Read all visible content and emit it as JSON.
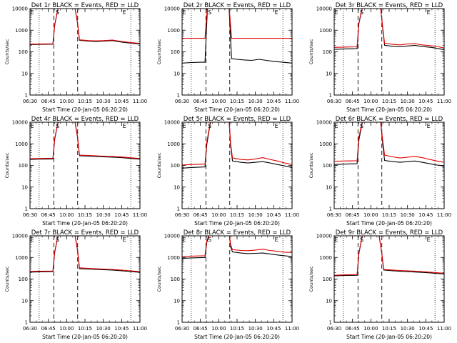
{
  "figure": {
    "background": "#ffffff",
    "axis_color": "#000000"
  },
  "chart_data": [
    {
      "type": "line",
      "title": "Det 1r BLACK = Events, RED = LLD",
      "xlabel": "Start Time (20-Jan-05 06:20:20)",
      "ylabel": "Counts/sec",
      "xticks": [
        "06:30",
        "06:45",
        "10:00",
        "10:15",
        "10:30",
        "10:45",
        "11:00"
      ],
      "yscale": "log",
      "ylim": [
        1,
        10000
      ],
      "yticks": [
        "1",
        "10",
        "100",
        "1000",
        "10000"
      ],
      "vlines_dotted": [
        0.5,
        5.5
      ],
      "vlines_dashed": [
        1.3,
        2.6
      ],
      "markers": [
        {
          "label": "E",
          "x": 0.12
        },
        {
          "label": "S",
          "x": 1.5
        },
        {
          "label": "E",
          "x": 5.15
        }
      ],
      "series": [
        {
          "name": "Events",
          "color": "#000000",
          "x": [
            0,
            0.5,
            1.25,
            1.35,
            1.6,
            2.4,
            2.6,
            2.7,
            3.2,
            3.6,
            4.0,
            4.5,
            5.0,
            5.5,
            6.0
          ],
          "y": [
            215,
            220,
            225,
            1800,
            20000,
            20000,
            2000,
            340,
            310,
            300,
            310,
            330,
            280,
            250,
            230
          ]
        },
        {
          "name": "LLD",
          "color": "#e00000",
          "x": [
            0,
            0.5,
            1.25,
            1.35,
            1.6,
            2.4,
            2.6,
            2.7,
            3.2,
            3.6,
            4.0,
            4.5,
            5.0,
            5.5,
            6.0
          ],
          "y": [
            225,
            230,
            235,
            1900,
            20000,
            20000,
            2100,
            360,
            330,
            320,
            330,
            350,
            300,
            270,
            245
          ]
        }
      ]
    },
    {
      "type": "line",
      "title": "Det 2r BLACK = Events, RED = LLD",
      "xlabel": "Start Time (20-Jan-05 06:20:20)",
      "ylabel": "Counts/sec",
      "xticks": [
        "06:30",
        "06:45",
        "10:00",
        "10:15",
        "10:30",
        "10:45",
        "11:00"
      ],
      "yscale": "log",
      "ylim": [
        1,
        10000
      ],
      "yticks": [
        "1",
        "10",
        "100",
        "1000",
        "10000"
      ],
      "vlines_dotted": [
        0.5,
        5.5
      ],
      "vlines_dashed": [
        1.3,
        2.6
      ],
      "markers": [
        {
          "label": "E",
          "x": 0.12
        },
        {
          "label": "S",
          "x": 1.5
        },
        {
          "label": "E",
          "x": 5.15
        }
      ],
      "series": [
        {
          "name": "Events",
          "color": "#000000",
          "x": [
            0,
            0.5,
            1.0,
            1.25,
            1.4,
            2.55,
            2.7,
            3.0,
            3.4,
            3.8,
            4.2,
            4.6,
            5.0,
            5.5,
            6.0
          ],
          "y": [
            30,
            32,
            33,
            33,
            20000,
            20000,
            48,
            45,
            42,
            40,
            45,
            40,
            36,
            33,
            30
          ]
        },
        {
          "name": "LLD",
          "color": "#e00000",
          "x": [
            0,
            0.5,
            1.0,
            1.25,
            1.4,
            2.55,
            2.7,
            3.0,
            3.5,
            4.0,
            4.5,
            5.0,
            5.5,
            6.0
          ],
          "y": [
            420,
            420,
            420,
            420,
            20000,
            20000,
            420,
            420,
            420,
            420,
            420,
            420,
            420,
            420
          ]
        }
      ]
    },
    {
      "type": "line",
      "title": "Det 3r BLACK = Events, RED = LLD",
      "xlabel": "Start Time (20-Jan-05 06:20:20)",
      "ylabel": "Counts/sec",
      "xticks": [
        "06:30",
        "06:45",
        "10:00",
        "10:15",
        "10:30",
        "10:45",
        "11:00"
      ],
      "yscale": "log",
      "ylim": [
        1,
        10000
      ],
      "yticks": [
        "1",
        "10",
        "100",
        "1000",
        "10000"
      ],
      "vlines_dotted": [
        0.5,
        5.5
      ],
      "vlines_dashed": [
        1.3,
        2.6
      ],
      "markers": [
        {
          "label": "E",
          "x": 0.12
        },
        {
          "label": "S",
          "x": 1.5
        },
        {
          "label": "E",
          "x": 5.15
        }
      ],
      "series": [
        {
          "name": "Events",
          "color": "#000000",
          "x": [
            0,
            0.5,
            1.25,
            1.35,
            1.6,
            2.5,
            2.65,
            2.75,
            3.2,
            3.6,
            4.0,
            4.4,
            4.8,
            5.3,
            5.7,
            6.0
          ],
          "y": [
            130,
            135,
            140,
            2000,
            20000,
            20000,
            1200,
            200,
            180,
            170,
            185,
            200,
            175,
            160,
            140,
            125
          ]
        },
        {
          "name": "LLD",
          "color": "#e00000",
          "x": [
            0,
            0.5,
            1.25,
            1.35,
            1.6,
            2.5,
            2.65,
            2.75,
            3.2,
            3.6,
            4.0,
            4.4,
            4.8,
            5.3,
            5.7,
            6.0
          ],
          "y": [
            160,
            165,
            170,
            2200,
            20000,
            20000,
            1300,
            250,
            220,
            210,
            230,
            240,
            210,
            190,
            170,
            150
          ]
        }
      ]
    },
    {
      "type": "line",
      "title": "Det 4r BLACK = Events, RED = LLD",
      "xlabel": "Start Time (20-Jan-05 06:20:20)",
      "ylabel": "Counts/sec",
      "xticks": [
        "06:30",
        "06:45",
        "10:00",
        "10:15",
        "10:30",
        "10:45",
        "11:00"
      ],
      "yscale": "log",
      "ylim": [
        1,
        10000
      ],
      "yticks": [
        "1",
        "10",
        "100",
        "1000",
        "10000"
      ],
      "vlines_dotted": [
        0.5,
        5.5
      ],
      "vlines_dashed": [
        1.3,
        2.6
      ],
      "markers": [
        {
          "label": "E",
          "x": 0.12
        },
        {
          "label": "S",
          "x": 1.5
        },
        {
          "label": "E",
          "x": 5.15
        }
      ],
      "series": [
        {
          "name": "Events",
          "color": "#000000",
          "x": [
            0,
            0.5,
            1.25,
            1.35,
            1.6,
            2.4,
            2.6,
            2.7,
            3.2,
            3.6,
            4.0,
            4.5,
            5.0,
            5.5,
            6.0
          ],
          "y": [
            190,
            195,
            200,
            1700,
            20000,
            20000,
            1900,
            280,
            270,
            260,
            250,
            240,
            230,
            210,
            195
          ]
        },
        {
          "name": "LLD",
          "color": "#e00000",
          "x": [
            0,
            0.5,
            1.25,
            1.35,
            1.6,
            2.4,
            2.6,
            2.7,
            3.2,
            3.6,
            4.0,
            4.5,
            5.0,
            5.5,
            6.0
          ],
          "y": [
            205,
            210,
            215,
            1800,
            20000,
            20000,
            2000,
            300,
            290,
            280,
            270,
            260,
            245,
            225,
            210
          ]
        }
      ]
    },
    {
      "type": "line",
      "title": "Det 5r BLACK = Events, RED = LLD",
      "xlabel": "Start Time (20-Jan-05 06:20:20)",
      "ylabel": "Counts/sec",
      "xticks": [
        "06:30",
        "06:45",
        "10:00",
        "10:15",
        "10:30",
        "10:45",
        "11:00"
      ],
      "yscale": "log",
      "ylim": [
        1,
        10000
      ],
      "yticks": [
        "1",
        "10",
        "100",
        "1000",
        "10000"
      ],
      "vlines_dotted": [
        0.5,
        5.5
      ],
      "vlines_dashed": [
        1.3,
        2.6
      ],
      "markers": [
        {
          "label": "E",
          "x": 0.12
        },
        {
          "label": "S",
          "x": 1.5
        },
        {
          "label": "E",
          "x": 5.15
        }
      ],
      "series": [
        {
          "name": "Events",
          "color": "#000000",
          "x": [
            0,
            0.5,
            1.25,
            1.35,
            1.6,
            2.55,
            2.65,
            2.75,
            3.2,
            3.6,
            4.0,
            4.4,
            4.8,
            5.2,
            5.6,
            6.0
          ],
          "y": [
            75,
            80,
            85,
            900,
            20000,
            20000,
            800,
            160,
            140,
            130,
            140,
            150,
            130,
            110,
            95,
            80
          ]
        },
        {
          "name": "LLD",
          "color": "#e00000",
          "x": [
            0,
            0.5,
            1.25,
            1.35,
            1.6,
            2.55,
            2.65,
            2.75,
            3.2,
            3.6,
            4.0,
            4.4,
            4.8,
            5.2,
            5.6,
            6.0
          ],
          "y": [
            105,
            110,
            115,
            1200,
            20000,
            20000,
            1000,
            220,
            190,
            180,
            200,
            230,
            190,
            160,
            130,
            110
          ]
        }
      ]
    },
    {
      "type": "line",
      "title": "Det 6r BLACK = Events, RED = LLD",
      "xlabel": "Start Time (20-Jan-05 06:20:20)",
      "ylabel": "Counts/sec",
      "xticks": [
        "06:30",
        "06:45",
        "10:00",
        "10:15",
        "10:30",
        "10:45",
        "11:00"
      ],
      "yscale": "log",
      "ylim": [
        1,
        10000
      ],
      "yticks": [
        "1",
        "10",
        "100",
        "1000",
        "10000"
      ],
      "vlines_dotted": [
        0.5,
        5.5
      ],
      "vlines_dashed": [
        1.3,
        2.6
      ],
      "markers": [
        {
          "label": "E",
          "x": 0.12
        },
        {
          "label": "S",
          "x": 1.5
        },
        {
          "label": "E",
          "x": 5.15
        }
      ],
      "series": [
        {
          "name": "Events",
          "color": "#000000",
          "x": [
            0,
            0.5,
            1.25,
            1.35,
            1.6,
            2.5,
            2.65,
            2.75,
            3.2,
            3.6,
            4.0,
            4.4,
            4.8,
            5.2,
            5.6,
            6.0
          ],
          "y": [
            110,
            115,
            120,
            1500,
            20000,
            20000,
            1000,
            170,
            150,
            140,
            150,
            160,
            140,
            120,
            105,
            95
          ]
        },
        {
          "name": "LLD",
          "color": "#e00000",
          "x": [
            0,
            0.5,
            1.25,
            1.35,
            1.6,
            2.5,
            2.65,
            2.75,
            3.2,
            3.6,
            4.0,
            4.4,
            4.8,
            5.2,
            5.6,
            6.0
          ],
          "y": [
            155,
            160,
            165,
            2000,
            20000,
            20000,
            1400,
            300,
            250,
            220,
            240,
            260,
            230,
            190,
            160,
            140
          ]
        }
      ]
    },
    {
      "type": "line",
      "title": "Det 7r BLACK = Events, RED = LLD",
      "xlabel": "Start Time (20-Jan-05 06:20:20)",
      "ylabel": "Counts/sec",
      "xticks": [
        "06:30",
        "06:45",
        "10:00",
        "10:15",
        "10:30",
        "10:45",
        "11:00"
      ],
      "yscale": "log",
      "ylim": [
        1,
        10000
      ],
      "yticks": [
        "1",
        "10",
        "100",
        "1000",
        "10000"
      ],
      "vlines_dotted": [
        0.5,
        5.5
      ],
      "vlines_dashed": [
        1.3,
        2.6
      ],
      "markers": [
        {
          "label": "E",
          "x": 0.12
        },
        {
          "label": "S",
          "x": 1.5
        },
        {
          "label": "E",
          "x": 5.15
        }
      ],
      "series": [
        {
          "name": "Events",
          "color": "#000000",
          "x": [
            0,
            0.5,
            1.25,
            1.35,
            1.6,
            2.4,
            2.6,
            2.7,
            3.2,
            3.6,
            4.0,
            4.5,
            5.0,
            5.5,
            6.0
          ],
          "y": [
            210,
            215,
            220,
            1800,
            20000,
            20000,
            2000,
            300,
            290,
            280,
            270,
            260,
            240,
            220,
            205
          ]
        },
        {
          "name": "LLD",
          "color": "#e00000",
          "x": [
            0,
            0.5,
            1.25,
            1.35,
            1.6,
            2.4,
            2.6,
            2.7,
            3.2,
            3.6,
            4.0,
            4.5,
            5.0,
            5.5,
            6.0
          ],
          "y": [
            225,
            230,
            235,
            1900,
            20000,
            20000,
            2100,
            330,
            310,
            300,
            290,
            280,
            260,
            240,
            220
          ]
        }
      ]
    },
    {
      "type": "line",
      "title": "Det 8r BLACK = Events, RED = LLD",
      "xlabel": "Start Time (20-Jan-05 06:20:20)",
      "ylabel": "Counts/sec",
      "xticks": [
        "06:30",
        "06:45",
        "10:00",
        "10:15",
        "10:30",
        "10:45",
        "11:00"
      ],
      "yscale": "log",
      "ylim": [
        1,
        10000
      ],
      "yticks": [
        "1",
        "10",
        "100",
        "1000",
        "10000"
      ],
      "vlines_dotted": [
        0.5,
        5.5
      ],
      "vlines_dashed": [
        1.3,
        2.6
      ],
      "markers": [
        {
          "label": "E",
          "x": 0.12
        },
        {
          "label": "S",
          "x": 1.5
        },
        {
          "label": "E",
          "x": 5.15
        }
      ],
      "series": [
        {
          "name": "Events",
          "color": "#000000",
          "x": [
            0,
            0.5,
            1.25,
            1.35,
            1.6,
            2.55,
            2.65,
            2.75,
            3.2,
            3.6,
            4.0,
            4.4,
            4.8,
            5.2,
            5.6,
            6.0
          ],
          "y": [
            900,
            950,
            1000,
            5000,
            20000,
            20000,
            3000,
            1800,
            1600,
            1500,
            1550,
            1600,
            1450,
            1300,
            1200,
            1100
          ]
        },
        {
          "name": "LLD",
          "color": "#e00000",
          "x": [
            0,
            0.5,
            1.25,
            1.35,
            1.6,
            2.55,
            2.65,
            2.75,
            3.2,
            3.6,
            4.0,
            4.4,
            4.8,
            5.2,
            5.6,
            6.0
          ],
          "y": [
            1100,
            1150,
            1200,
            6000,
            20000,
            20000,
            3800,
            2300,
            2100,
            2050,
            2200,
            2400,
            2100,
            1900,
            1750,
            1700
          ]
        }
      ]
    },
    {
      "type": "line",
      "title": "Det 9r BLACK = Events, RED = LLD",
      "xlabel": "Start Time (20-Jan-05 06:20:20)",
      "ylabel": "Counts/sec",
      "xticks": [
        "06:30",
        "06:45",
        "10:00",
        "10:15",
        "10:30",
        "10:45",
        "11:00"
      ],
      "yscale": "log",
      "ylim": [
        1,
        10000
      ],
      "yticks": [
        "1",
        "10",
        "100",
        "1000",
        "10000"
      ],
      "vlines_dotted": [
        0.5,
        5.5
      ],
      "vlines_dashed": [
        1.3,
        2.6
      ],
      "markers": [
        {
          "label": "E",
          "x": 0.12
        },
        {
          "label": "S",
          "x": 1.5
        },
        {
          "label": "E",
          "x": 5.15
        }
      ],
      "series": [
        {
          "name": "Events",
          "color": "#000000",
          "x": [
            0,
            0.5,
            1.25,
            1.35,
            1.6,
            2.4,
            2.6,
            2.7,
            3.2,
            3.6,
            4.0,
            4.5,
            5.0,
            5.5,
            6.0
          ],
          "y": [
            140,
            145,
            150,
            1500,
            20000,
            20000,
            1500,
            260,
            240,
            230,
            220,
            210,
            200,
            185,
            170
          ]
        },
        {
          "name": "LLD",
          "color": "#e00000",
          "x": [
            0,
            0.5,
            1.25,
            1.35,
            1.6,
            2.4,
            2.6,
            2.7,
            3.2,
            3.6,
            4.0,
            4.5,
            5.0,
            5.5,
            6.0
          ],
          "y": [
            150,
            155,
            160,
            1600,
            20000,
            20000,
            1600,
            280,
            260,
            250,
            240,
            230,
            215,
            200,
            185
          ]
        }
      ]
    }
  ]
}
